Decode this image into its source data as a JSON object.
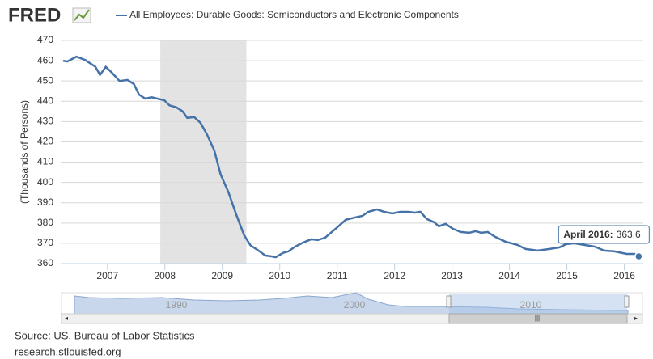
{
  "logo": "FRED",
  "source": "Source: US. Bureau of Labor Statistics",
  "url": "research.stlouisfed.org",
  "chart_data": {
    "type": "line",
    "y_label": "(Thousands of Persons)",
    "x": [
      2006.23,
      2006.3,
      2006.46,
      2006.61,
      2006.79,
      2006.87,
      2006.97,
      2007.08,
      2007.21,
      2007.35,
      2007.46,
      2007.55,
      2007.66,
      2007.77,
      2007.99,
      2008.08,
      2008.2,
      2008.31,
      2008.39,
      2008.51,
      2008.62,
      2008.73,
      2008.86,
      2008.97,
      2009.11,
      2009.24,
      2009.38,
      2009.49,
      2009.61,
      2009.75,
      2009.86,
      2009.93,
      2010.06,
      2010.15,
      2010.27,
      2010.41,
      2010.55,
      2010.66,
      2010.79,
      2010.99,
      2011.15,
      2011.32,
      2011.44,
      2011.54,
      2011.69,
      2011.82,
      2011.96,
      2012.1,
      2012.24,
      2012.35,
      2012.45,
      2012.56,
      2012.69,
      2012.77,
      2012.89,
      2013.01,
      2013.15,
      2013.3,
      2013.41,
      2013.51,
      2013.62,
      2013.75,
      2013.93,
      2014.14,
      2014.28,
      2014.49,
      2014.7,
      2014.87,
      2014.99,
      2015.13,
      2015.3,
      2015.48,
      2015.65,
      2015.83,
      2016.04,
      2016.18,
      2016.25
    ],
    "series": [
      {
        "name": "All Employees: Durable Goods: Semiconductors and Electronic Components",
        "color": "#4572a7",
        "values": [
          460,
          459.6,
          462,
          460.4,
          457,
          453,
          457,
          454,
          450,
          450.5,
          448.5,
          443.3,
          441.3,
          442,
          440.5,
          438,
          437,
          435,
          431.8,
          432.2,
          429.4,
          423.8,
          415.8,
          404,
          395,
          384.3,
          374,
          369,
          366.8,
          364,
          363.6,
          363.2,
          365.3,
          366,
          368.4,
          370.4,
          372,
          371.6,
          372.8,
          377.6,
          381.6,
          382.8,
          383.5,
          385.5,
          386.7,
          385.5,
          384.7,
          385.5,
          385.5,
          385.1,
          385.5,
          382,
          380.4,
          378.4,
          379.6,
          377.2,
          375.6,
          375.2,
          376,
          375.2,
          375.6,
          373.2,
          370.8,
          369.2,
          367.2,
          366.4,
          367.2,
          368,
          369.6,
          370,
          369.2,
          368.4,
          366.4,
          366,
          364.8,
          364.8,
          363.6
        ]
      }
    ],
    "xlim": [
      2006.2,
      2016.33
    ],
    "xticks": [
      2007,
      2008,
      2009,
      2010,
      2011,
      2012,
      2013,
      2014,
      2015,
      2016
    ],
    "ylim": [
      360,
      470
    ],
    "yticks": [
      360,
      370,
      380,
      390,
      400,
      410,
      420,
      430,
      440,
      450,
      460,
      470
    ],
    "grid": true,
    "recessions": [
      [
        2007.92,
        2009.42
      ]
    ],
    "recession_color": "#e3e3e3",
    "tooltip": {
      "label": "April 2016:"
    },
    "navigator": {
      "labels": [
        "1990",
        "2000",
        "2010"
      ]
    }
  }
}
